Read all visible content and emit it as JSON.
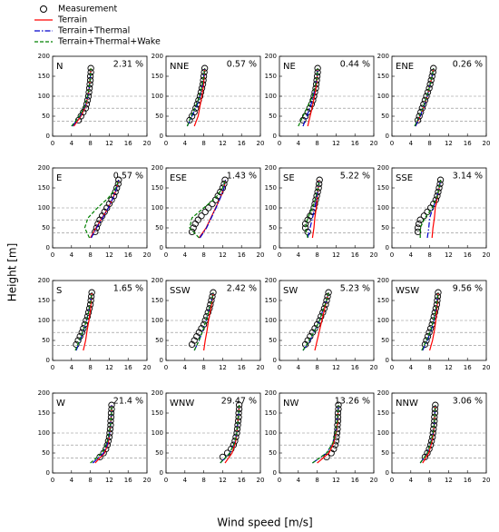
{
  "chart_data": {
    "type": "line",
    "x_label": "Wind speed [m/s]",
    "y_label": "Height [m]",
    "xlim": [
      0,
      20
    ],
    "ylim": [
      0,
      200
    ],
    "xticks": [
      0,
      4,
      8,
      12,
      16,
      20
    ],
    "yticks": [
      0,
      50,
      100,
      150,
      200
    ],
    "reference_lines": [
      38,
      70,
      100
    ],
    "heights": [
      40,
      50,
      60,
      70,
      80,
      90,
      100,
      110,
      120,
      130,
      140,
      150,
      160,
      170
    ],
    "line_heights": [
      25,
      50,
      75,
      100,
      125,
      150,
      170
    ],
    "series": [
      {
        "name": "Measurement",
        "color": "#000000",
        "marker": "circle"
      },
      {
        "name": "Terrain",
        "color": "#ff0000",
        "dash": "solid"
      },
      {
        "name": "Terrain+Thermal",
        "color": "#0000cc",
        "dash": "dashdot"
      },
      {
        "name": "Terrain+Thermal+Wake",
        "color": "#008000",
        "dash": "dashed"
      }
    ],
    "panels": [
      {
        "name": "N",
        "share": "2.31 %",
        "values": [
          [
            5.5,
            6,
            6.5,
            7,
            7.2,
            7.4,
            7.6,
            7.7,
            7.8,
            7.9,
            8,
            8,
            8.1,
            8.1
          ],
          [
            4.5,
            6,
            7,
            7.5,
            7.8,
            8,
            8.1
          ],
          [
            4.2,
            5.8,
            6.9,
            7.5,
            7.8,
            8,
            8.1
          ],
          [
            4,
            5.7,
            6.8,
            7.4,
            7.8,
            8,
            8.1
          ]
        ]
      },
      {
        "name": "NNE",
        "share": "0.57 %",
        "values": [
          [
            5,
            5.5,
            6,
            6.3,
            6.6,
            6.9,
            7.2,
            7.4,
            7.6,
            7.8,
            7.9,
            8,
            8.1,
            8.2
          ],
          [
            6,
            6.8,
            7.2,
            7.6,
            7.9,
            8.1,
            8.2
          ],
          [
            4.5,
            5.5,
            6.5,
            7.2,
            7.7,
            8,
            8.2
          ],
          [
            4.5,
            5.3,
            6.3,
            7.1,
            7.6,
            8,
            8.2
          ]
        ]
      },
      {
        "name": "NE",
        "share": "0.44 %",
        "values": [
          [
            5,
            5.5,
            6,
            6.4,
            6.8,
            7.1,
            7.3,
            7.5,
            7.7,
            7.8,
            7.9,
            8,
            8.1,
            8.1
          ],
          [
            6,
            6.5,
            7,
            7.4,
            7.8,
            8,
            8.1
          ],
          [
            5,
            5.8,
            6.6,
            7.2,
            7.6,
            8,
            8.1
          ],
          [
            4,
            5,
            6,
            7,
            7.6,
            8,
            8.1
          ]
        ]
      },
      {
        "name": "ENE",
        "share": "0.26 %",
        "values": [
          [
            5.5,
            5.8,
            6.1,
            6.4,
            6.7,
            7,
            7.3,
            7.6,
            7.9,
            8.1,
            8.3,
            8.5,
            8.7,
            8.8
          ],
          [
            5,
            6,
            6.8,
            7.5,
            8,
            8.5,
            8.8
          ],
          [
            5,
            6,
            6.8,
            7.5,
            8,
            8.5,
            8.8
          ],
          [
            4.8,
            5.8,
            6.7,
            7.4,
            8,
            8.5,
            8.8
          ]
        ]
      },
      {
        "name": "E",
        "share": "0.57 %",
        "values": [
          [
            9,
            9.3,
            9.6,
            10,
            10.5,
            11,
            11.5,
            12,
            12.5,
            13,
            13.3,
            13.6,
            13.9,
            14
          ],
          [
            8,
            9.2,
            10.5,
            11.8,
            12.8,
            13.6,
            14
          ],
          [
            8.2,
            9.3,
            10.6,
            11.8,
            12.8,
            13.6,
            14
          ],
          [
            7.8,
            6.8,
            7.5,
            9.5,
            11.8,
            13.4,
            14
          ]
        ]
      },
      {
        "name": "ESE",
        "share": "1.43 %",
        "values": [
          [
            5.5,
            5.8,
            6.2,
            6.8,
            7.5,
            8.3,
            9,
            9.8,
            10.5,
            11,
            11.5,
            12,
            12.3,
            12.5
          ],
          [
            7,
            8.5,
            9.5,
            10.5,
            11.5,
            12.3,
            12.6
          ],
          [
            7.2,
            8.6,
            9.6,
            10.6,
            11.5,
            12.3,
            12.6
          ],
          [
            7,
            5,
            5.5,
            8,
            10.5,
            12,
            12.6
          ]
        ]
      },
      {
        "name": "SE",
        "share": "5.22 %",
        "values": [
          [
            6,
            5.5,
            5.5,
            6,
            6.5,
            7,
            7.3,
            7.5,
            7.7,
            7.9,
            8.1,
            8.3,
            8.4,
            8.5
          ],
          [
            7,
            7.3,
            7.5,
            7.8,
            8,
            8.2,
            8.4
          ],
          [
            6,
            6.5,
            7,
            7.5,
            7.9,
            8.2,
            8.4
          ],
          [
            6,
            5.5,
            6,
            7,
            7.7,
            8.2,
            8.4
          ]
        ]
      },
      {
        "name": "SSE",
        "share": "3.14 %",
        "values": [
          [
            5.5,
            5.5,
            5.7,
            6,
            6.8,
            7.5,
            8.2,
            8.8,
            9.3,
            9.6,
            9.8,
            10,
            10.2,
            10.3
          ],
          [
            8.5,
            8.7,
            9,
            9.2,
            9.6,
            10,
            10.3
          ],
          [
            7.5,
            7.8,
            8,
            8.7,
            9.5,
            10,
            10.3
          ],
          [
            6,
            6,
            7,
            8.5,
            9.5,
            10,
            10.3
          ]
        ]
      },
      {
        "name": "S",
        "share": "1.65 %",
        "values": [
          [
            5,
            5.4,
            5.8,
            6.2,
            6.5,
            6.8,
            7.1,
            7.4,
            7.6,
            7.8,
            8,
            8.1,
            8.2,
            8.3
          ],
          [
            6.5,
            7,
            7.3,
            7.7,
            8,
            8.2,
            8.3
          ],
          [
            5,
            5.8,
            6.6,
            7.2,
            7.7,
            8.1,
            8.3
          ],
          [
            4.8,
            5.7,
            6.5,
            7.2,
            7.7,
            8.1,
            8.3
          ]
        ]
      },
      {
        "name": "SSW",
        "share": "2.42 %",
        "values": [
          [
            5.5,
            6,
            6.5,
            7,
            7.5,
            8,
            8.3,
            8.6,
            8.9,
            9.2,
            9.4,
            9.6,
            9.8,
            10
          ],
          [
            8,
            8.3,
            8.7,
            9,
            9.4,
            9.8,
            10
          ],
          [
            6,
            7,
            7.8,
            8.5,
            9.1,
            9.7,
            10
          ],
          [
            6,
            7,
            7.8,
            8.5,
            9.1,
            9.7,
            10
          ]
        ]
      },
      {
        "name": "SW",
        "share": "5.23 %",
        "values": [
          [
            5.5,
            6,
            6.5,
            7,
            7.5,
            8,
            8.5,
            8.8,
            9.2,
            9.5,
            9.8,
            10,
            10.2,
            10.4
          ],
          [
            7.5,
            8,
            8.5,
            9,
            9.5,
            10,
            10.4
          ],
          [
            5,
            6.5,
            7.5,
            8.5,
            9.2,
            10,
            10.4
          ],
          [
            5,
            6.3,
            7.5,
            8.5,
            9.2,
            10,
            10.4
          ]
        ]
      },
      {
        "name": "WSW",
        "share": "9.56 %",
        "values": [
          [
            7,
            7.3,
            7.6,
            7.9,
            8.2,
            8.5,
            8.7,
            8.9,
            9.1,
            9.3,
            9.5,
            9.6,
            9.7,
            9.8
          ],
          [
            8,
            8.6,
            9,
            9.3,
            9.5,
            9.7,
            9.8
          ],
          [
            6.5,
            7.5,
            8.3,
            8.9,
            9.3,
            9.6,
            9.8
          ],
          [
            6.3,
            7.3,
            8.2,
            8.8,
            9.3,
            9.6,
            9.8
          ]
        ]
      },
      {
        "name": "W",
        "share": "21.4 %",
        "values": [
          [
            10,
            10.8,
            11.3,
            11.6,
            11.8,
            12,
            12.1,
            12.2,
            12.3,
            12.3,
            12.4,
            12.4,
            12.5,
            12.5
          ],
          [
            9,
            11,
            11.8,
            12.1,
            12.3,
            12.5,
            12.5
          ],
          [
            8.5,
            10.8,
            11.7,
            12.1,
            12.3,
            12.5,
            12.5
          ],
          [
            8,
            10.5,
            11.5,
            12,
            12.3,
            12.5,
            12.5
          ]
        ]
      },
      {
        "name": "WNW",
        "share": "29.47 %",
        "values": [
          [
            12,
            13,
            13.8,
            14.3,
            14.6,
            14.8,
            15,
            15.1,
            15.2,
            15.3,
            15.4,
            15.4,
            15.5,
            15.5
          ],
          [
            12.5,
            14,
            14.7,
            15,
            15.2,
            15.4,
            15.5
          ],
          [
            11.5,
            13.5,
            14.5,
            15,
            15.2,
            15.4,
            15.5
          ],
          [
            11.5,
            13.5,
            14.5,
            15,
            15.2,
            15.4,
            15.5
          ]
        ]
      },
      {
        "name": "NW",
        "share": "13.26 %",
        "values": [
          [
            10,
            11,
            11.5,
            11.8,
            12,
            12.1,
            12.2,
            12.3,
            12.3,
            12.4,
            12.4,
            12.4,
            12.5,
            12.5
          ],
          [
            8,
            10.5,
            11.5,
            12,
            12.3,
            12.4,
            12.5
          ],
          [
            7,
            10,
            11.3,
            11.9,
            12.2,
            12.4,
            12.5
          ],
          [
            7,
            10,
            11.3,
            11.9,
            12.2,
            12.4,
            12.5
          ]
        ]
      },
      {
        "name": "NNW",
        "share": "3.06 %",
        "values": [
          [
            7,
            7.5,
            7.9,
            8.2,
            8.4,
            8.6,
            8.7,
            8.8,
            8.9,
            9,
            9,
            9.1,
            9.1,
            9.2
          ],
          [
            6.5,
            7.8,
            8.4,
            8.8,
            9,
            9.1,
            9.2
          ],
          [
            6,
            7.5,
            8.2,
            8.7,
            9,
            9.1,
            9.2
          ],
          [
            6,
            7.5,
            8.2,
            8.7,
            9,
            9.1,
            9.2
          ]
        ]
      }
    ]
  }
}
